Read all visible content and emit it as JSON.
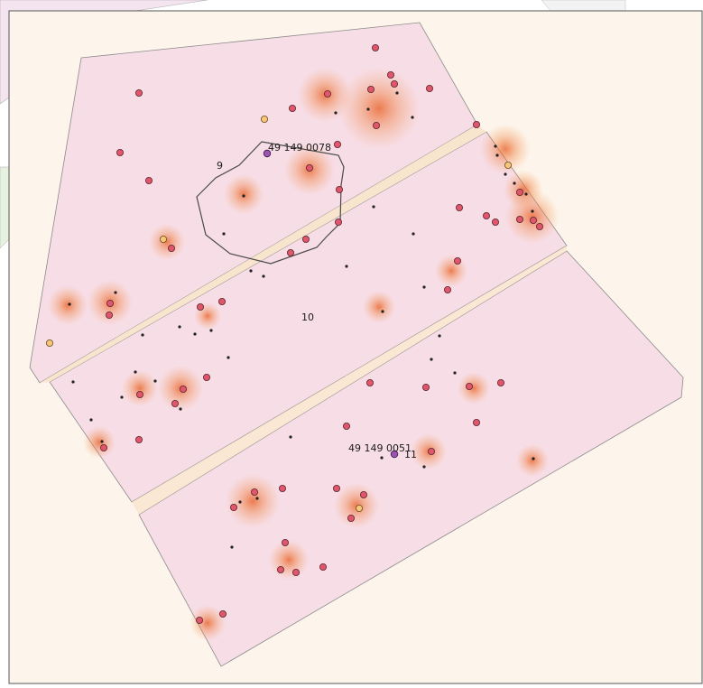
{
  "map": {
    "background_color": "#fdf5ec",
    "parcel_fill": "#f7dde6",
    "parcel_stroke": "#8a8a8a",
    "heat_color": "#ec6a26",
    "sample_point_color": "#e0566b",
    "yellow_point_color": "#f6c779",
    "purple_point_color": "#9b55b0",
    "small_dot_color": "#222222",
    "boundary_color": "#4a4a4a",
    "parcel_labels": [
      "9",
      "10",
      "11"
    ],
    "point_labels": [
      "49 149 0078",
      "49 149 0051"
    ]
  }
}
